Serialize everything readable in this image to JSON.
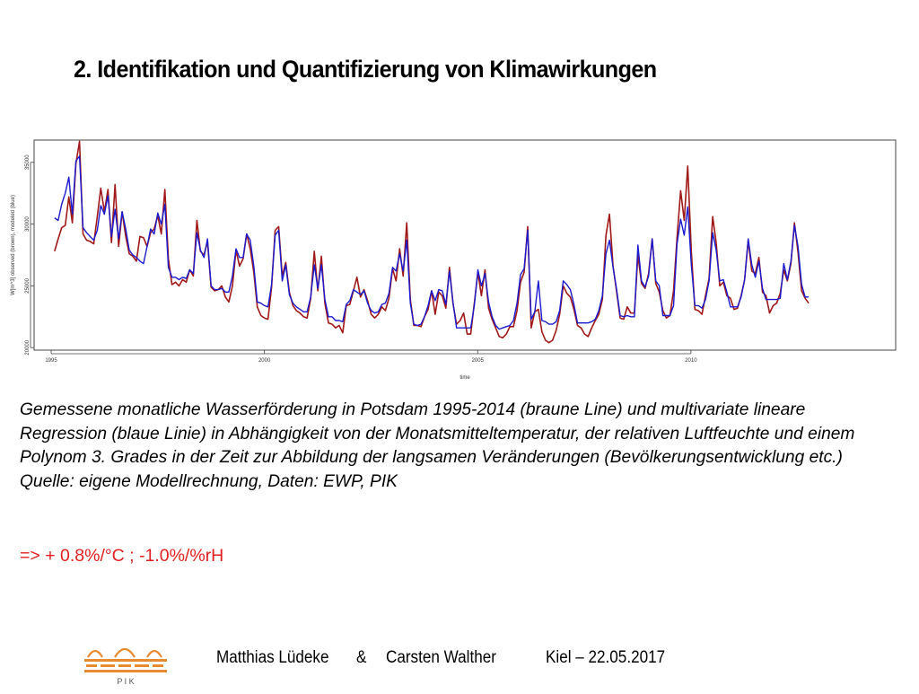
{
  "slide": {
    "title": "2. Identifikation und Quantifizierung von Klimawirkungen",
    "caption": "Gemessene monatliche Wasserförderung in Potsdam 1995-2014 (braune Line) und multivariate lineare Regression (blaue Linie) in Abhängigkeit von der Monatsmitteltemperatur, der relativen Luftfeuchte und einem Polynom 3. Grades in der Zeit zur Abbildung der langsamen Veränderungen (Bevölkerungsentwicklung etc.) Quelle: eigene Modellrechnung, Daten: EWP, PIK",
    "formula": "=> + 0.8%/°C ; -1.0%/%rH"
  },
  "footer": {
    "author1": "Matthias Lüdeke",
    "ampersand": "&",
    "author2": "Carsten Walther",
    "place_date": "Kiel – 22.05.2017",
    "logo_text": "P I K"
  },
  "colors": {
    "observed": "#a01818",
    "modeled": "#1a1ad0",
    "formula": "#e02020",
    "logo": "#e88a30"
  },
  "chart_data": {
    "type": "line",
    "xlabel": "time",
    "ylabel": "W[m^3] observed (brown), modeled (blue)",
    "xlim": [
      1994.6,
      2014.8
    ],
    "ylim": [
      19800,
      36800
    ],
    "x_ticks": [
      1995,
      2000,
      2005,
      2010
    ],
    "y_ticks": [
      20000,
      25000,
      30000,
      35000
    ],
    "x_start": 1995.08,
    "x_step": 0.0834,
    "series": [
      {
        "name": "observed (brown)",
        "color": "#a01818",
        "values": [
          27800,
          28800,
          29700,
          29900,
          32200,
          30100,
          34900,
          36700,
          29200,
          28700,
          28600,
          28400,
          30600,
          32900,
          31000,
          32800,
          28500,
          33200,
          28200,
          31000,
          29000,
          27600,
          27400,
          27000,
          29000,
          28900,
          28200,
          29300,
          29600,
          30700,
          29200,
          32800,
          27200,
          25100,
          25300,
          25000,
          25500,
          25300,
          26300,
          25800,
          30300,
          27800,
          27500,
          28600,
          24900,
          24600,
          24700,
          25000,
          24100,
          23700,
          25000,
          27900,
          26600,
          27200,
          29200,
          28000,
          26100,
          23300,
          22600,
          22400,
          22300,
          24900,
          29500,
          29800,
          25800,
          26900,
          24500,
          23400,
          23000,
          22800,
          22500,
          22400,
          24000,
          27800,
          24600,
          27400,
          23600,
          22000,
          21900,
          21600,
          21800,
          21200,
          23400,
          23500,
          24600,
          25700,
          24100,
          24700,
          23800,
          22700,
          22400,
          22700,
          23300,
          23000,
          24000,
          26400,
          25400,
          28000,
          25800,
          30100,
          23900,
          21800,
          21800,
          21700,
          22500,
          23100,
          24600,
          22700,
          24500,
          24200,
          23200,
          26500,
          23600,
          21900,
          22200,
          22800,
          21100,
          21100,
          23600,
          26100,
          24200,
          26300,
          23200,
          22300,
          21600,
          20900,
          20800,
          21100,
          21700,
          21700,
          23000,
          25300,
          26100,
          29800,
          21600,
          22900,
          23100,
          21300,
          20600,
          20400,
          20600,
          21400,
          22700,
          25000,
          24400,
          24100,
          23100,
          21800,
          21600,
          21100,
          20900,
          21600,
          22200,
          22700,
          23900,
          29100,
          30800,
          26600,
          24500,
          22400,
          22300,
          23300,
          22800,
          22800,
          27500,
          25200,
          24800,
          26000,
          28800,
          25200,
          24500,
          23000,
          22400,
          22600,
          24600,
          28900,
          32700,
          30300,
          34700,
          27800,
          23100,
          23000,
          22700,
          24200,
          25600,
          30600,
          28500,
          25000,
          25300,
          24200,
          24000,
          23100,
          23200,
          24200,
          25500,
          28700,
          26200,
          26000,
          27300,
          24500,
          24200,
          22800,
          23400,
          23600,
          24400,
          26300,
          25400,
          26800,
          30100,
          27700,
          24600,
          24000,
          23600
        ]
      },
      {
        "name": "modeled (blue)",
        "color": "#1a1ad0",
        "values": [
          30500,
          30300,
          31600,
          32500,
          33800,
          30800,
          35100,
          35500,
          29700,
          29300,
          29000,
          28700,
          29500,
          31500,
          30800,
          32300,
          29000,
          31200,
          28800,
          31000,
          29600,
          27900,
          27500,
          27300,
          27000,
          26800,
          28200,
          29600,
          29200,
          30900,
          30000,
          31600,
          26500,
          25700,
          25700,
          25500,
          25700,
          25600,
          26300,
          26000,
          29300,
          27900,
          27300,
          28800,
          25000,
          24700,
          24700,
          24800,
          24500,
          24500,
          25800,
          28000,
          27300,
          27300,
          29200,
          28700,
          26600,
          23700,
          23600,
          23400,
          23300,
          25100,
          29100,
          29500,
          25400,
          26700,
          24300,
          23600,
          23300,
          23100,
          22900,
          22900,
          24100,
          26700,
          24800,
          26700,
          23900,
          22500,
          22500,
          22200,
          22200,
          22100,
          23500,
          23800,
          24700,
          24500,
          24300,
          24600,
          23600,
          23000,
          22800,
          22900,
          23500,
          23600,
          24400,
          26500,
          26200,
          27600,
          26200,
          28700,
          23600,
          21900,
          21800,
          21900,
          22500,
          23400,
          24600,
          23800,
          24700,
          24600,
          23500,
          26200,
          23700,
          21600,
          21600,
          21600,
          21600,
          21600,
          23400,
          26300,
          25000,
          26000,
          23700,
          22500,
          21800,
          21500,
          21600,
          21700,
          21800,
          22200,
          23600,
          25900,
          26400,
          29500,
          22300,
          22900,
          25400,
          22200,
          22100,
          21900,
          21900,
          22100,
          23000,
          25400,
          25100,
          24700,
          23500,
          22000,
          22000,
          22000,
          22000,
          22100,
          22300,
          23000,
          24200,
          27600,
          28700,
          26500,
          24700,
          22600,
          22500,
          22600,
          22500,
          22500,
          28300,
          25400,
          24900,
          25800,
          28800,
          25400,
          25000,
          22600,
          22600,
          22600,
          23400,
          28400,
          30400,
          29100,
          31400,
          26700,
          23400,
          23400,
          23200,
          23900,
          25400,
          29300,
          27900,
          25400,
          25500,
          24500,
          23300,
          23300,
          23300,
          24100,
          25500,
          28800,
          26700,
          25700,
          27000,
          24800,
          23900,
          23900,
          23900,
          23900,
          24000,
          26800,
          25500,
          27000,
          29900,
          28200,
          25100,
          24100,
          24100
        ]
      }
    ]
  }
}
